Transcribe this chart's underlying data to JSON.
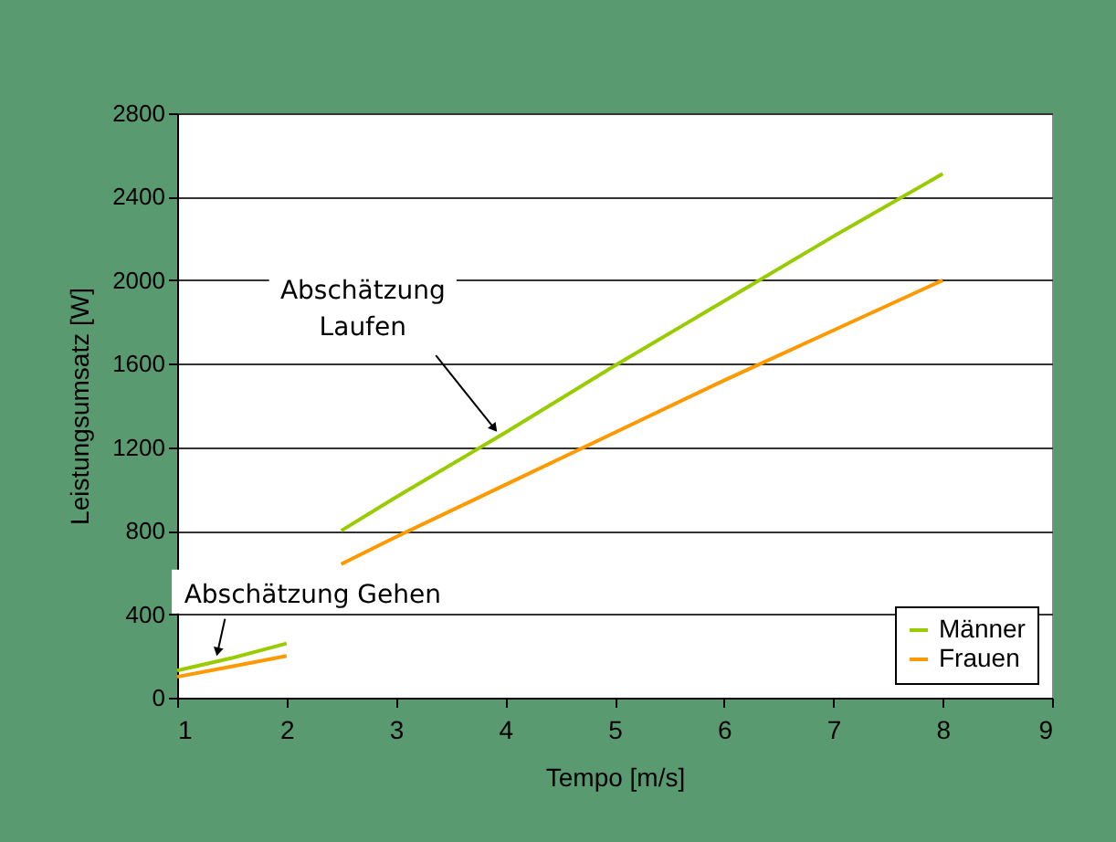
{
  "chart_data": {
    "type": "line",
    "xlabel": "Tempo [m/s]",
    "ylabel": "Leistungsumsatz [W]",
    "x": [
      1,
      1.5,
      2,
      2.25,
      2.5,
      3,
      4,
      5,
      6,
      7,
      8
    ],
    "series": [
      {
        "name": "Männer",
        "color": "#99cc00",
        "values": [
          130,
          190,
          260,
          null,
          800,
          960,
          1270,
          1590,
          1900,
          2210,
          2510
        ]
      },
      {
        "name": "Frauen",
        "color": "#ff9900",
        "values": [
          100,
          150,
          200,
          null,
          640,
          770,
          1020,
          1270,
          1520,
          1760,
          2000
        ]
      }
    ],
    "xlim": [
      1,
      9
    ],
    "xticks": [
      1,
      2,
      3,
      4,
      5,
      6,
      7,
      8,
      9
    ],
    "ylim": [
      0,
      2800
    ],
    "yticks": [
      0,
      400,
      800,
      1200,
      1600,
      2000,
      2400,
      2800
    ],
    "grid": "y",
    "legend": "bottom right",
    "marker": "none",
    "line_style": "solid",
    "annotations": [
      {
        "text": "Abschätzung\nLaufen",
        "x": 3.9,
        "y": 1290
      },
      {
        "text": "Abschätzung Gehen",
        "x": 1.37,
        "y": 220
      }
    ]
  }
}
